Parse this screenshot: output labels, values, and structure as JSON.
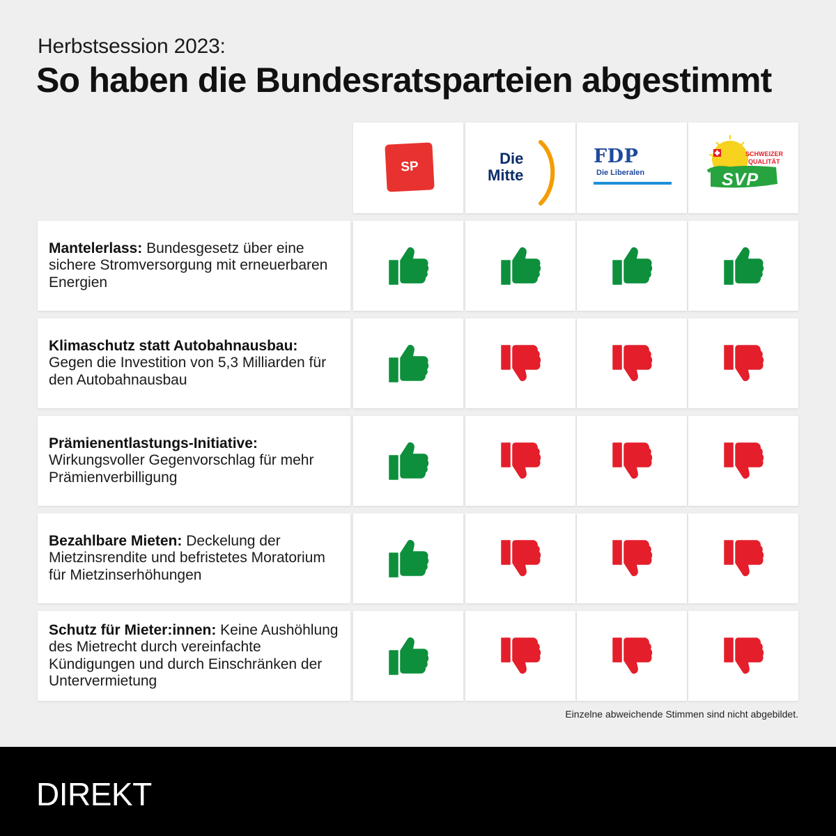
{
  "kicker": "Herbstsession 2023:",
  "headline": "So haben die Bundesratsparteien abgestimmt",
  "parties": [
    {
      "name": "SP",
      "logo_text": "SP",
      "color": "#e8322f"
    },
    {
      "name": "Die Mitte",
      "logo_line1": "Die",
      "logo_line2": "Mitte",
      "color": "#0b2c6b",
      "accent": "#f59c00"
    },
    {
      "name": "FDP",
      "logo_text": "FDP",
      "logo_sub": "Die Liberalen",
      "color": "#1f4a9c",
      "accent": "#1e90d6"
    },
    {
      "name": "SVP",
      "logo_text": "SVP",
      "logo_line1": "SCHWEIZER",
      "logo_line2": "QUALITÄT",
      "color": "#27a33f",
      "accent": "#f7d21e"
    }
  ],
  "rows": [
    {
      "title": "Mantelerlass:",
      "text": " Bundesgesetz über eine sichere Stromversorgung mit erneuerbaren Energien",
      "votes": [
        "yes",
        "yes",
        "yes",
        "yes"
      ]
    },
    {
      "title": "Klimaschutz statt Autobahnausbau:",
      "text": " Gegen die Investition von 5,3 Milliarden für den Autobahnausbau",
      "votes": [
        "yes",
        "no",
        "no",
        "no"
      ]
    },
    {
      "title": "Prämienentlastungs-Initiative:",
      "text": " Wirkungsvoller Gegenvorschlag für mehr Prämienverbilligung",
      "votes": [
        "yes",
        "no",
        "no",
        "no"
      ]
    },
    {
      "title": "Bezahlbare Mieten:",
      "text": " Deckelung der Mietzinsrendite und befristetes Moratorium für Mietzinserhöhungen",
      "votes": [
        "yes",
        "no",
        "no",
        "no"
      ]
    },
    {
      "title": "Schutz für Mieter:innen:",
      "text": " Keine Aushöhlung des Mietrecht durch vereinfachte Kündigungen und durch Einschränken der Untervermietung",
      "votes": [
        "yes",
        "no",
        "no",
        "no"
      ]
    }
  ],
  "colors": {
    "yes": "#0d8f3c",
    "no": "#e41e2b"
  },
  "icons": {
    "yes": "thumbs-up-icon",
    "no": "thumbs-down-icon"
  },
  "footnote": "Einzelne abweichende Stimmen sind nicht abgebildet.",
  "brand": "DIREKT"
}
